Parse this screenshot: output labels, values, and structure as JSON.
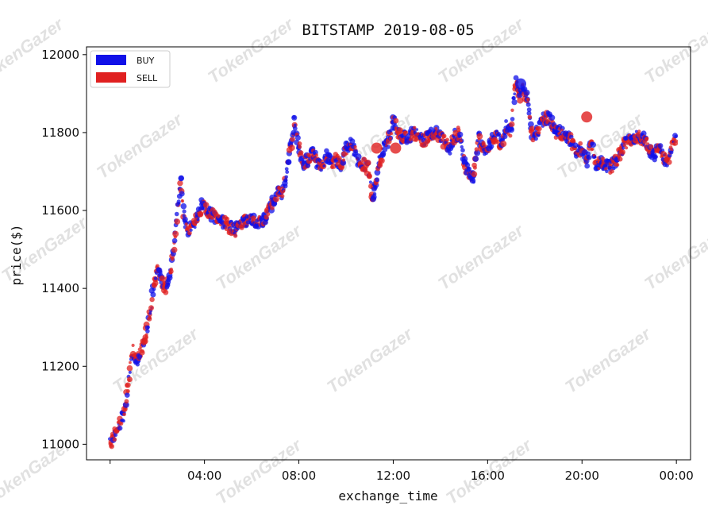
{
  "watermark": "TokenGazer",
  "chart_data": {
    "type": "scatter",
    "title": "BITSTAMP 2019-08-05",
    "xlabel": "exchange_time",
    "ylabel": "price($)",
    "ylim": [
      10960,
      12020
    ],
    "xlim": [
      -1.0,
      24.6
    ],
    "yticks": [
      11000,
      11200,
      11400,
      11600,
      11800,
      12000
    ],
    "ytick_labels": [
      "11000",
      "11200",
      "11400",
      "11600",
      "11800",
      "12000"
    ],
    "xticks": [
      4,
      8,
      12,
      16,
      20,
      24
    ],
    "xtick_labels": [
      "04:00",
      "08:00",
      "12:00",
      "16:00",
      "20:00",
      "00:00"
    ],
    "legend": {
      "position": "top-left",
      "entries": [
        "BUY",
        "SELL"
      ]
    },
    "grid": false,
    "colors": {
      "BUY": "#1010e8",
      "SELL": "#e02020"
    },
    "price_path": {
      "hours": [
        0.0,
        0.3,
        0.6,
        0.8,
        0.95,
        1.1,
        1.3,
        1.5,
        1.7,
        1.8,
        1.9,
        2.0,
        2.1,
        2.3,
        2.5,
        2.65,
        2.8,
        2.9,
        3.0,
        3.1,
        3.2,
        3.3,
        3.5,
        3.7,
        3.9,
        4.1,
        4.3,
        4.6,
        5.0,
        5.3,
        5.6,
        5.9,
        6.2,
        6.5,
        6.8,
        7.1,
        7.3,
        7.5,
        7.6,
        7.7,
        7.8,
        7.9,
        8.0,
        8.2,
        8.4,
        8.6,
        8.8,
        9.0,
        9.2,
        9.4,
        9.6,
        9.8,
        10.0,
        10.2,
        10.4,
        10.6,
        10.8,
        11.0,
        11.1,
        11.2,
        11.4,
        11.6,
        11.8,
        12.0,
        12.3,
        12.6,
        12.9,
        13.2,
        13.5,
        13.8,
        14.1,
        14.4,
        14.6,
        14.8,
        15.0,
        15.2,
        15.4,
        15.6,
        15.8,
        16.0,
        16.2,
        16.4,
        16.6,
        16.8,
        17.0,
        17.1,
        17.2,
        17.35,
        17.5,
        17.7,
        17.9,
        18.1,
        18.3,
        18.6,
        18.9,
        19.2,
        19.5,
        19.8,
        20.0,
        20.2,
        20.4,
        20.6,
        20.9,
        21.2,
        21.5,
        21.8,
        22.1,
        22.4,
        22.7,
        23.0,
        23.3,
        23.6,
        23.8,
        24.0
      ],
      "prices": [
        11000,
        11040,
        11080,
        11170,
        11240,
        11210,
        11240,
        11280,
        11340,
        11390,
        11420,
        11450,
        11440,
        11400,
        11420,
        11480,
        11560,
        11630,
        11670,
        11600,
        11570,
        11550,
        11560,
        11580,
        11620,
        11600,
        11590,
        11580,
        11560,
        11550,
        11570,
        11580,
        11570,
        11570,
        11610,
        11650,
        11640,
        11700,
        11760,
        11770,
        11840,
        11790,
        11760,
        11720,
        11730,
        11750,
        11720,
        11720,
        11740,
        11720,
        11730,
        11710,
        11760,
        11770,
        11750,
        11710,
        11720,
        11700,
        11640,
        11650,
        11720,
        11760,
        11780,
        11830,
        11790,
        11790,
        11800,
        11780,
        11790,
        11800,
        11780,
        11760,
        11790,
        11800,
        11720,
        11700,
        11680,
        11790,
        11760,
        11760,
        11780,
        11790,
        11770,
        11820,
        11800,
        11880,
        11930,
        11890,
        11910,
        11880,
        11790,
        11800,
        11830,
        11840,
        11800,
        11800,
        11780,
        11750,
        11760,
        11720,
        11780,
        11720,
        11720,
        11710,
        11730,
        11770,
        11780,
        11790,
        11780,
        11740,
        11760,
        11720,
        11760,
        11790
      ]
    },
    "noise_amplitude": 16,
    "point_spacing_hours": 0.033,
    "large_markers": [
      {
        "side": "SELL",
        "hour": 11.3,
        "price": 11760
      },
      {
        "side": "SELL",
        "hour": 20.2,
        "price": 11840
      },
      {
        "side": "BUY",
        "hour": 17.4,
        "price": 11925
      },
      {
        "side": "SELL",
        "hour": 12.1,
        "price": 11760
      }
    ]
  }
}
